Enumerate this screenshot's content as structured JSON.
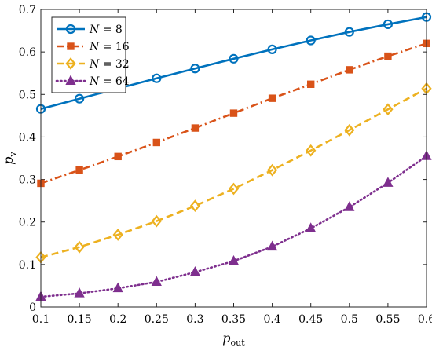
{
  "chart_data": {
    "type": "line",
    "x": [
      0.1,
      0.15,
      0.2,
      0.25,
      0.3,
      0.35,
      0.4,
      0.45,
      0.5,
      0.55,
      0.6
    ],
    "xlim": [
      0.1,
      0.6
    ],
    "ylim": [
      0,
      0.7
    ],
    "xticks": [
      "0.1",
      "0.15",
      "0.2",
      "0.25",
      "0.3",
      "0.35",
      "0.4",
      "0.45",
      "0.5",
      "0.55",
      "0.6"
    ],
    "xtick_values": [
      0.1,
      0.15,
      0.2,
      0.25,
      0.3,
      0.35,
      0.4,
      0.45,
      0.5,
      0.55,
      0.6
    ],
    "yticks": [
      "0",
      "0.1",
      "0.2",
      "0.3",
      "0.4",
      "0.5",
      "0.6",
      "0.7"
    ],
    "ytick_values": [
      0,
      0.1,
      0.2,
      0.3,
      0.4,
      0.5,
      0.6,
      0.7
    ],
    "xlabel": {
      "main": "p",
      "sub": "out"
    },
    "ylabel": {
      "main": "p",
      "sub": "v"
    },
    "grid": false,
    "legend_position": "top-left",
    "series": [
      {
        "name": "N = 8",
        "legend_var": "N",
        "legend_value": "8",
        "color": "#0072BD",
        "dash": "solid",
        "marker": "circle",
        "values": [
          0.466,
          0.49,
          0.514,
          0.538,
          0.561,
          0.584,
          0.606,
          0.627,
          0.647,
          0.665,
          0.682
        ]
      },
      {
        "name": "N = 16",
        "legend_var": "N",
        "legend_value": "16",
        "color": "#D95319",
        "dash": "dashdot",
        "marker": "square",
        "values": [
          0.291,
          0.322,
          0.354,
          0.387,
          0.421,
          0.456,
          0.491,
          0.524,
          0.558,
          0.59,
          0.62
        ]
      },
      {
        "name": "N = 32",
        "legend_var": "N",
        "legend_value": "32",
        "color": "#EDB120",
        "dash": "dashed",
        "marker": "diamond",
        "values": [
          0.117,
          0.141,
          0.17,
          0.202,
          0.238,
          0.278,
          0.322,
          0.368,
          0.416,
          0.465,
          0.514
        ]
      },
      {
        "name": "N = 64",
        "legend_var": "N",
        "legend_value": "64",
        "color": "#7E2F8E",
        "dash": "dotted",
        "marker": "triangle",
        "values": [
          0.024,
          0.032,
          0.044,
          0.059,
          0.082,
          0.108,
          0.142,
          0.185,
          0.235,
          0.292,
          0.355
        ]
      }
    ]
  }
}
